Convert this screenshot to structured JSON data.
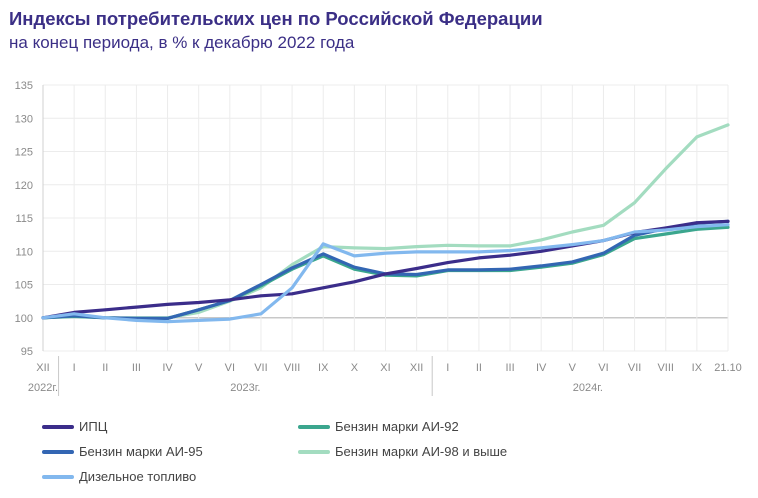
{
  "title": "Индексы потребительских цен по Российской Федерации",
  "subtitle": "на конец периода, в % к декабрю 2022 года",
  "chart_data": {
    "type": "line",
    "x": [
      "XII",
      "I",
      "II",
      "III",
      "IV",
      "V",
      "VI",
      "VII",
      "VIII",
      "IX",
      "X",
      "XI",
      "XII",
      "I",
      "II",
      "III",
      "IV",
      "V",
      "VI",
      "VII",
      "VIII",
      "IX",
      "21.10"
    ],
    "year_labels": [
      "2022г.",
      "2023г.",
      "2024г."
    ],
    "ylim": [
      95,
      135
    ],
    "yticks": [
      95,
      100,
      105,
      110,
      115,
      120,
      125,
      130,
      135
    ],
    "grid": true,
    "legend_position": "bottom",
    "series": [
      {
        "name": "Бензин марки АИ-98 и выше",
        "color": "#a3dcc0",
        "values": [
          100,
          100.2,
          100.0,
          100.0,
          100.0,
          100.8,
          102.5,
          104.5,
          108.0,
          110.7,
          110.5,
          110.4,
          110.7,
          110.9,
          110.8,
          110.8,
          111.7,
          112.9,
          113.9,
          117.3,
          122.4,
          127.2,
          129.0
        ]
      },
      {
        "name": "Бензин марки АИ-92",
        "color": "#3ba68e",
        "values": [
          100,
          100.2,
          100.0,
          99.9,
          99.9,
          101.2,
          102.6,
          104.8,
          107.3,
          109.3,
          107.3,
          106.4,
          106.3,
          107.1,
          107.1,
          107.1,
          107.6,
          108.2,
          109.5,
          111.9,
          112.6,
          113.3,
          113.6
        ]
      },
      {
        "name": "Бензин марки АИ-95",
        "color": "#3366b3",
        "values": [
          100,
          100.3,
          100.0,
          99.9,
          99.9,
          101.2,
          102.6,
          105.0,
          107.5,
          109.6,
          107.6,
          106.6,
          106.5,
          107.2,
          107.2,
          107.3,
          107.8,
          108.4,
          109.7,
          112.4,
          113.4,
          114.2,
          114.5
        ]
      },
      {
        "name": "ИПЦ",
        "color": "#3b2d8a",
        "values": [
          100,
          100.8,
          101.2,
          101.6,
          102.0,
          102.3,
          102.7,
          103.3,
          103.6,
          104.5,
          105.4,
          106.6,
          107.4,
          108.3,
          109.0,
          109.4,
          110.0,
          110.8,
          111.6,
          112.8,
          113.5,
          114.3,
          114.5
        ]
      },
      {
        "name": "Дизельное топливо",
        "color": "#82b8ee",
        "values": [
          100,
          100.6,
          100.0,
          99.6,
          99.4,
          99.6,
          99.8,
          100.6,
          104.5,
          111.1,
          109.3,
          109.7,
          109.9,
          109.9,
          109.9,
          110.1,
          110.5,
          111.0,
          111.6,
          112.9,
          113.2,
          113.7,
          114.0
        ]
      }
    ],
    "legend": [
      {
        "name": "ИПЦ",
        "color": "#3b2d8a"
      },
      {
        "name": "Бензин марки АИ-92",
        "color": "#3ba68e"
      },
      {
        "name": "Бензин марки АИ-95",
        "color": "#3366b3"
      },
      {
        "name": "Бензин марки АИ-98 и выше",
        "color": "#a3dcc0"
      },
      {
        "name": "Дизельное топливо",
        "color": "#82b8ee"
      }
    ]
  }
}
